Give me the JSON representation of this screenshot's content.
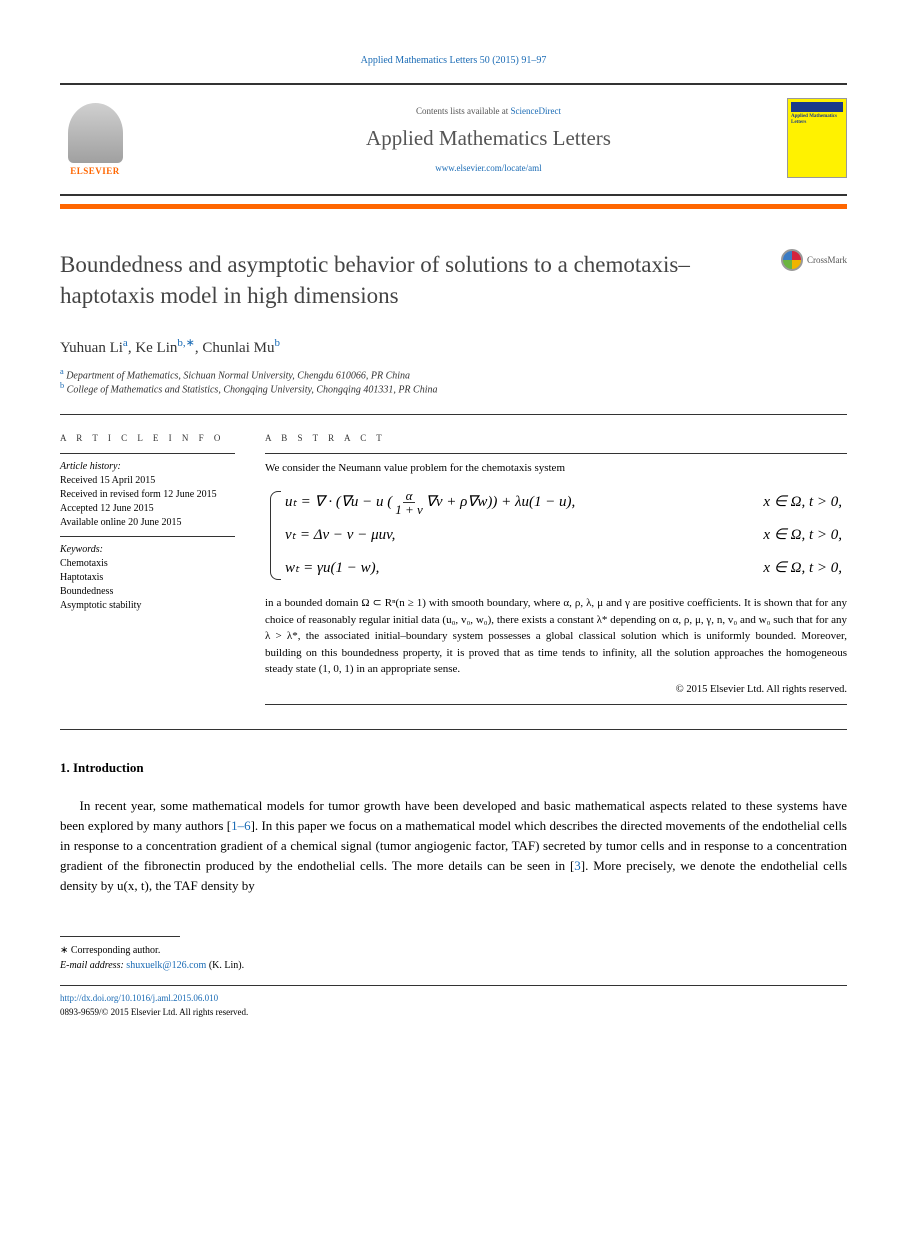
{
  "header": {
    "citation": "Applied Mathematics Letters 50 (2015) 91–97",
    "contents_prefix": "Contents lists available at ",
    "contents_link": "ScienceDirect",
    "journal_name": "Applied Mathematics Letters",
    "journal_url": "www.elsevier.com/locate/aml",
    "publisher": "ELSEVIER",
    "cover_text": "Applied Mathematics Letters"
  },
  "title": "Boundedness and asymptotic behavior of solutions to a chemotaxis–haptotaxis model in high dimensions",
  "crossmark": "CrossMark",
  "authors": {
    "a1_name": "Yuhuan Li",
    "a1_sup": "a",
    "a2_name": "Ke Lin",
    "a2_sup": "b,∗",
    "a3_name": "Chunlai Mu",
    "a3_sup": "b"
  },
  "affiliations": {
    "a": "Department of Mathematics, Sichuan Normal University, Chengdu 610066, PR China",
    "b": "College of Mathematics and Statistics, Chongqing University, Chongqing 401331, PR China"
  },
  "article_info": {
    "heading": "A R T I C L E   I N F O",
    "history_label": "Article history:",
    "received": "Received 15 April 2015",
    "revised": "Received in revised form 12 June 2015",
    "accepted": "Accepted 12 June 2015",
    "online": "Available online 20 June 2015",
    "keywords_label": "Keywords:",
    "kw1": "Chemotaxis",
    "kw2": "Haptotaxis",
    "kw3": "Boundedness",
    "kw4": "Asymptotic stability"
  },
  "abstract": {
    "heading": "A B S T R A C T",
    "intro": "We consider the Neumann value problem for the chemotaxis system",
    "eq1_lhs": "uₜ = ∇ · (∇u − u (",
    "eq1_frac_num": "α",
    "eq1_frac_den": "1 + v",
    "eq1_rhs": "∇v + ρ∇w)) + λu(1 − u),",
    "eq1_cond": "x ∈ Ω,  t > 0,",
    "eq2": "vₜ = Δv − v − μuv,",
    "eq2_cond": "x ∈ Ω,  t > 0,",
    "eq3": "wₜ = γu(1 − w),",
    "eq3_cond": "x ∈ Ω,  t > 0,",
    "body": "in a bounded domain Ω ⊂ Rⁿ(n ≥ 1) with smooth boundary, where α, ρ, λ, μ and γ are positive coefficients. It is shown that for any choice of reasonably regular initial data (u₀, v₀, w₀), there exists a constant λ* depending on α, ρ, μ, γ, n, v₀ and w₀ such that for any λ > λ*, the associated initial–boundary system possesses a global classical solution which is uniformly bounded. Moreover, building on this boundedness property, it is proved that as time tends to infinity, all the solution approaches the homogeneous steady state (1, 0, 1) in an appropriate sense.",
    "copyright": "© 2015 Elsevier Ltd. All rights reserved."
  },
  "section1": {
    "heading": "1. Introduction",
    "p1_a": "In recent year, some mathematical models for tumor growth have been developed and basic mathematical aspects related to these systems have been explored by many authors [",
    "p1_ref1": "1–6",
    "p1_b": "]. In this paper we focus on a mathematical model which describes the directed movements of the endothelial cells in response to a concentration gradient of a chemical signal (tumor angiogenic factor, TAF) secreted by tumor cells and in response to a concentration gradient of the fibronectin produced by the endothelial cells. The more details can be seen in [",
    "p1_ref2": "3",
    "p1_c": "]. More precisely, we denote the endothelial cells density by u(x, t), the TAF density by"
  },
  "footnote": {
    "corr": "∗ Corresponding author.",
    "email_label": "E-mail address: ",
    "email": "shuxuelk@126.com",
    "email_suffix": " (K. Lin)."
  },
  "footer": {
    "doi": "http://dx.doi.org/10.1016/j.aml.2015.06.010",
    "issn": "0893-9659/© 2015 Elsevier Ltd. All rights reserved."
  },
  "colors": {
    "link": "#1a6bb5",
    "orange": "#ff6600",
    "yellow": "#fff200"
  }
}
